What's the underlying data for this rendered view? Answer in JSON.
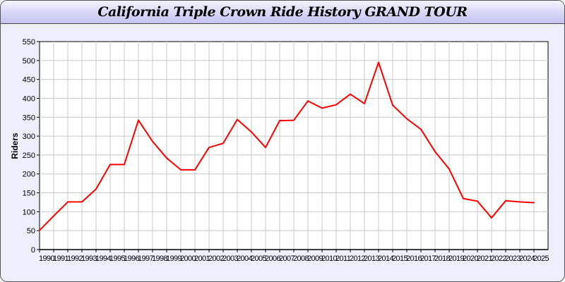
{
  "chart_data": {
    "type": "line",
    "title": "California Triple Crown Ride History GRAND TOUR",
    "xlabel": "",
    "ylabel": "Riders",
    "ylim": [
      0,
      550
    ],
    "ystep": 50,
    "grid": true,
    "line_color": "#ff0000",
    "x": [
      1990,
      1991,
      1992,
      1993,
      1994,
      1995,
      1996,
      1997,
      1998,
      1999,
      2000,
      2001,
      2002,
      2003,
      2004,
      2005,
      2006,
      2007,
      2008,
      2009,
      2010,
      2011,
      2012,
      2013,
      2014,
      2015,
      2016,
      2017,
      2018,
      2019,
      2020,
      2021,
      2022,
      2023,
      2024,
      2025
    ],
    "series": [
      {
        "values": [
          51,
          89,
          126,
          126,
          160,
          225,
          225,
          342,
          286,
          242,
          211,
          211,
          270,
          281,
          344,
          311,
          270,
          341,
          342,
          393,
          374,
          383,
          411,
          386,
          495,
          382,
          346,
          318,
          259,
          213,
          135,
          128,
          84,
          129,
          126,
          124
        ]
      }
    ]
  }
}
